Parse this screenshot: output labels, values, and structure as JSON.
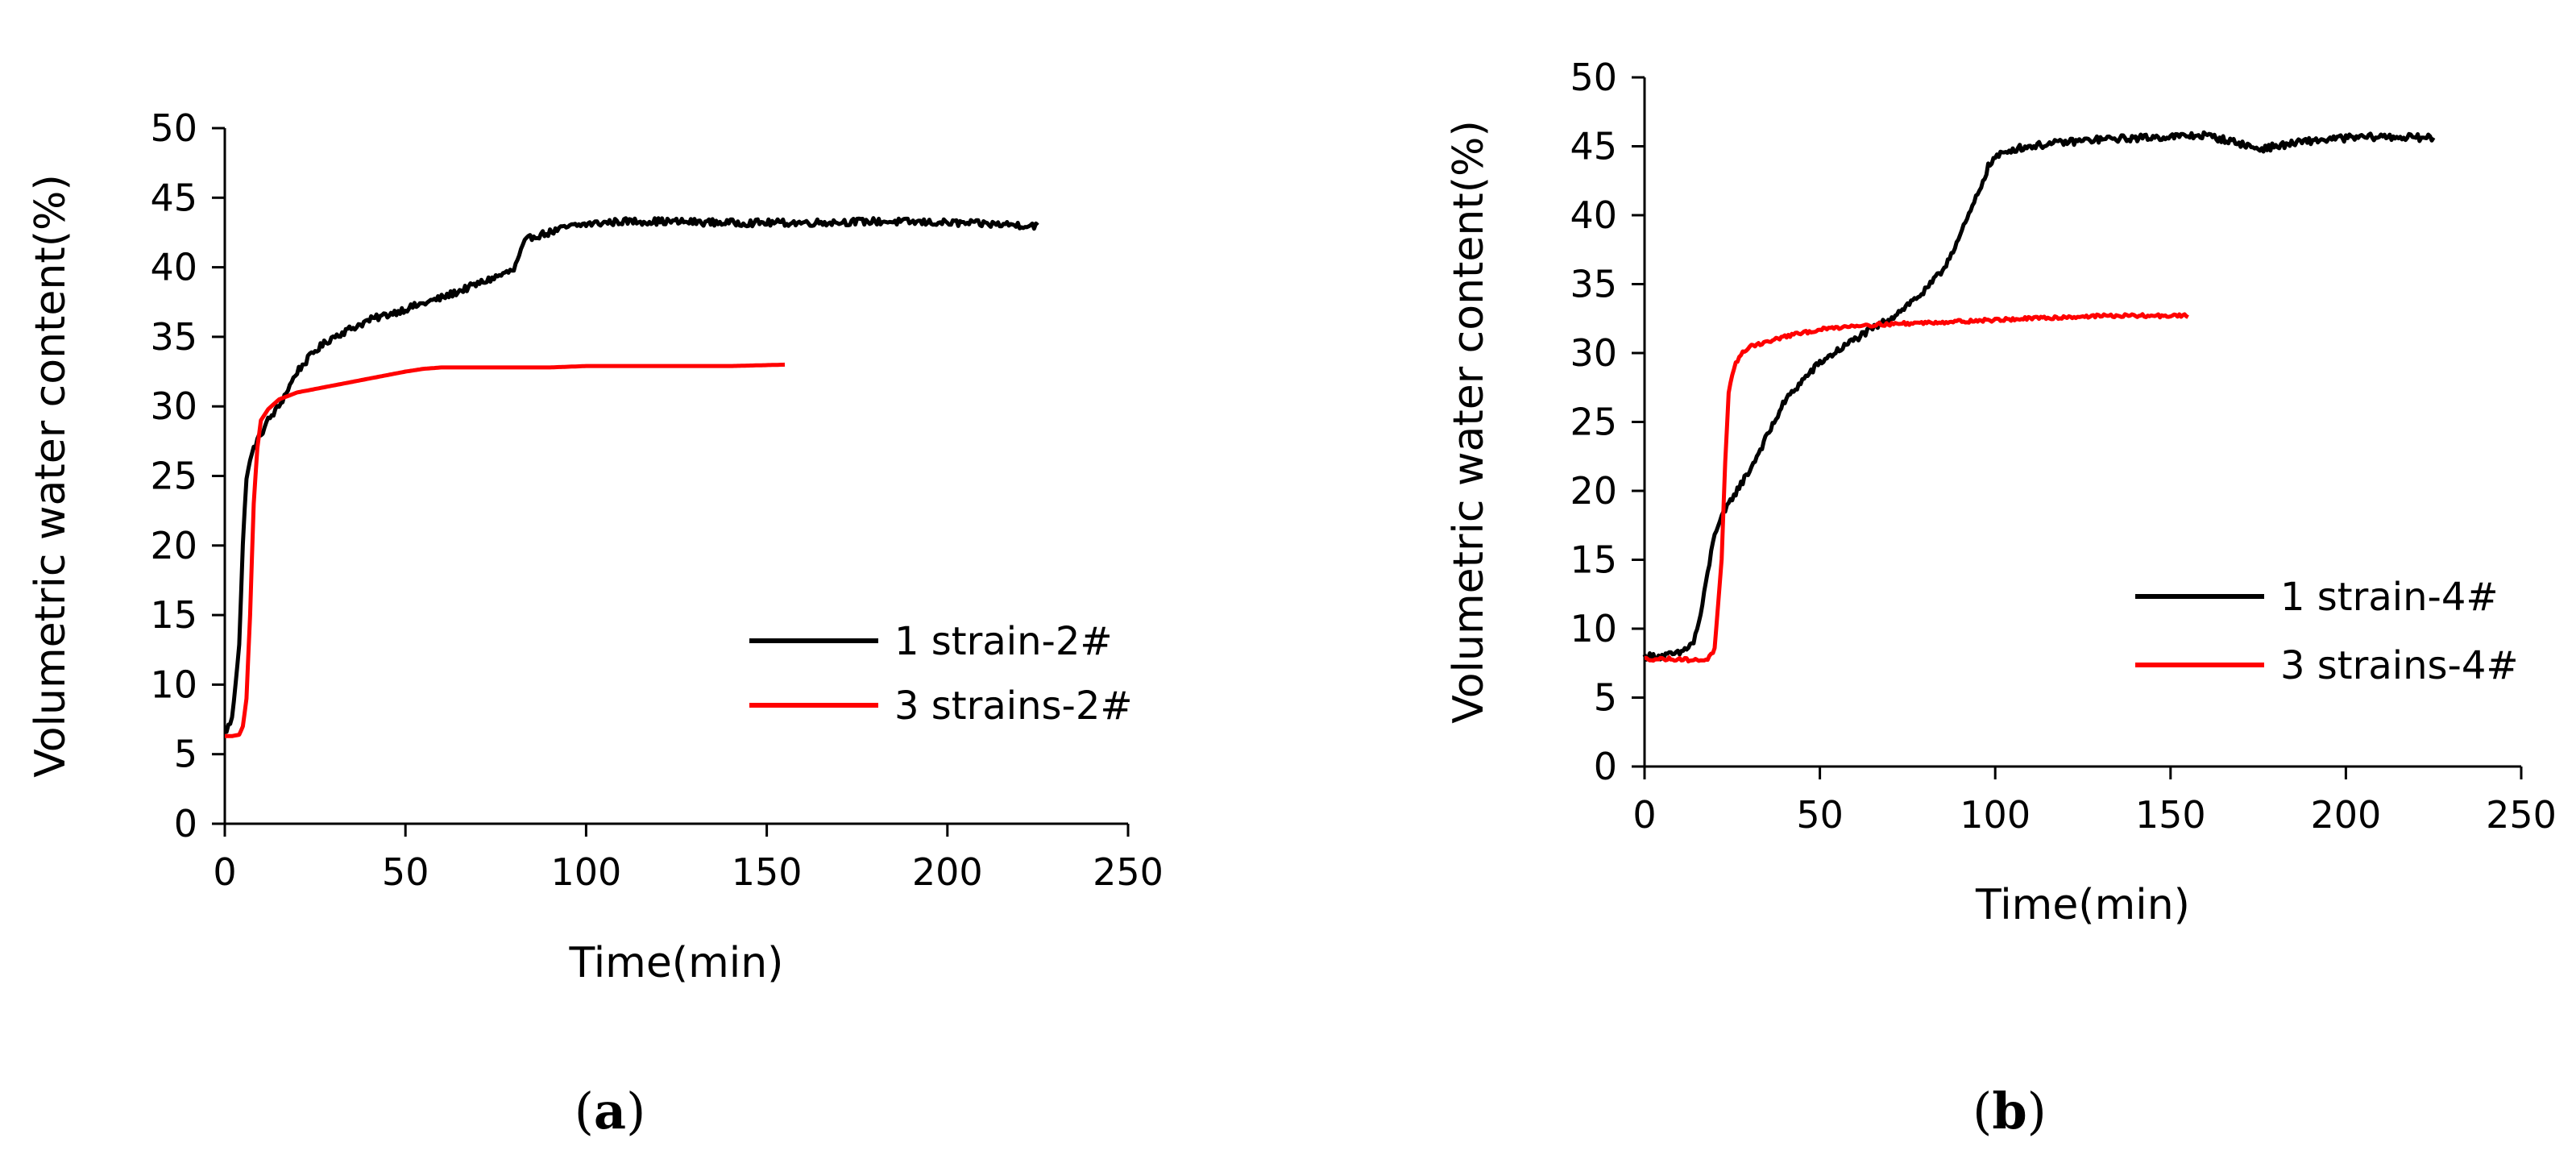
{
  "chart_data": [
    {
      "type": "line",
      "panel_label": "a",
      "title": "",
      "xlabel": "Time(min)",
      "ylabel": "Volumetric water content(%)",
      "xlim": [
        0,
        250
      ],
      "ylim": [
        0,
        50
      ],
      "xticks": [
        0,
        50,
        100,
        150,
        200,
        250
      ],
      "yticks": [
        0,
        5,
        10,
        15,
        20,
        25,
        30,
        35,
        40,
        45,
        50
      ],
      "grid": false,
      "legend_position": "center-right",
      "series": [
        {
          "name": "1 strain-2#",
          "color": "#000000",
          "noise": 0.25,
          "x": [
            0,
            2,
            4,
            5,
            6,
            8,
            10,
            12,
            15,
            18,
            20,
            25,
            30,
            40,
            50,
            60,
            70,
            80,
            83,
            85,
            90,
            95,
            100,
            110,
            120,
            140,
            160,
            180,
            200,
            225
          ],
          "y": [
            6.5,
            7.5,
            13,
            20,
            25,
            27,
            28,
            29,
            30,
            31.5,
            32.5,
            34,
            35,
            36.2,
            37,
            37.8,
            38.8,
            39.8,
            41.8,
            42.2,
            42.5,
            42.9,
            43.1,
            43.3,
            43.3,
            43.2,
            43.2,
            43.3,
            43.2,
            43.0
          ]
        },
        {
          "name": "3 strains-2#",
          "color": "#ff0000",
          "noise": 0.0,
          "x": [
            0,
            2,
            4,
            5,
            6,
            7,
            8,
            9,
            10,
            12,
            15,
            20,
            30,
            40,
            50,
            55,
            60,
            70,
            80,
            90,
            100,
            120,
            140,
            155
          ],
          "y": [
            6.3,
            6.3,
            6.4,
            7,
            9,
            15,
            23,
            27,
            29,
            29.8,
            30.5,
            31,
            31.5,
            32,
            32.5,
            32.7,
            32.8,
            32.8,
            32.8,
            32.8,
            32.9,
            32.9,
            32.9,
            33.0
          ]
        }
      ]
    },
    {
      "type": "line",
      "panel_label": "b",
      "title": "",
      "xlabel": "Time(min)",
      "ylabel": "Volumetric water content(%)",
      "xlim": [
        0,
        250
      ],
      "ylim": [
        0,
        50
      ],
      "xticks": [
        0,
        50,
        100,
        150,
        200,
        250
      ],
      "yticks": [
        0,
        5,
        10,
        15,
        20,
        25,
        30,
        35,
        40,
        45,
        50
      ],
      "grid": false,
      "legend_position": "center-right",
      "series": [
        {
          "name": "1 strain-4#",
          "color": "#000000",
          "noise": 0.25,
          "x": [
            0,
            5,
            10,
            14,
            16,
            18,
            20,
            25,
            30,
            35,
            40,
            45,
            50,
            60,
            70,
            80,
            85,
            90,
            95,
            98,
            100,
            105,
            110,
            120,
            130,
            140,
            150,
            160,
            165,
            170,
            175,
            180,
            190,
            200,
            210,
            225
          ],
          "y": [
            8,
            8,
            8.2,
            9,
            11,
            14,
            17,
            19.5,
            21.5,
            24,
            26.5,
            28,
            29.3,
            31,
            32.5,
            34.5,
            36,
            38.5,
            41.5,
            43.5,
            44.2,
            44.8,
            45,
            45.3,
            45.5,
            45.6,
            45.7,
            45.8,
            45.5,
            45.2,
            44.8,
            45,
            45.4,
            45.6,
            45.7,
            45.6
          ]
        },
        {
          "name": "3 strains-4#",
          "color": "#ff0000",
          "noise": 0.12,
          "x": [
            0,
            10,
            15,
            18,
            20,
            22,
            23,
            24,
            25,
            26,
            28,
            30,
            35,
            40,
            50,
            60,
            70,
            80,
            90,
            100,
            110,
            120,
            130,
            140,
            155
          ],
          "y": [
            7.8,
            7.8,
            7.7,
            7.8,
            8.5,
            15,
            22,
            27,
            28.5,
            29.3,
            30,
            30.5,
            30.8,
            31.2,
            31.7,
            32,
            32.1,
            32.2,
            32.3,
            32.4,
            32.5,
            32.6,
            32.7,
            32.7,
            32.7
          ]
        }
      ]
    }
  ],
  "captions": [
    {
      "open": "(",
      "letter": "a",
      "close": ")"
    },
    {
      "open": "(",
      "letter": "b",
      "close": ")"
    }
  ]
}
